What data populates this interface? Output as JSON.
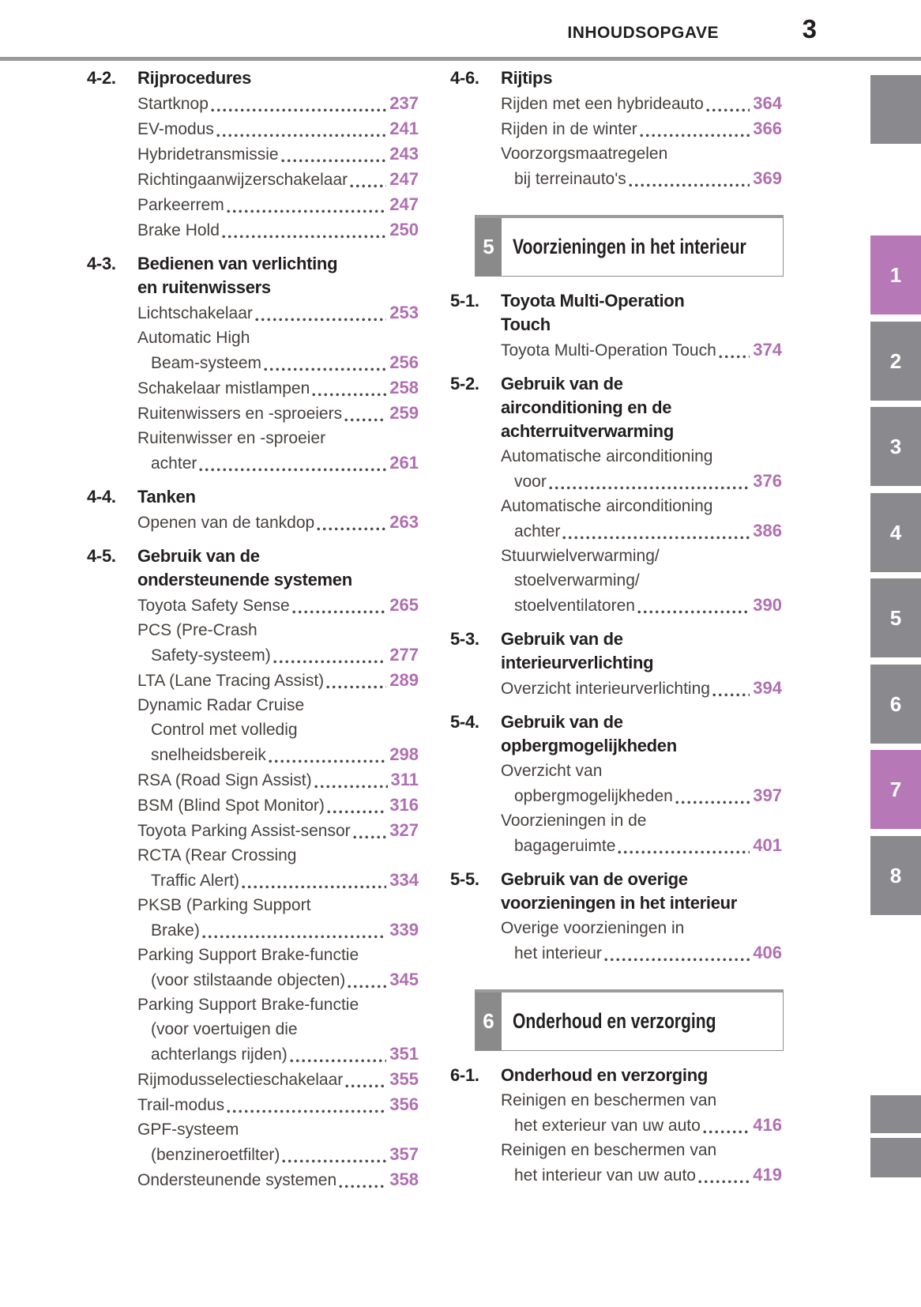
{
  "header": {
    "title": "INHOUDSOPGAVE",
    "page_number": "3"
  },
  "colors": {
    "page_number_purple": "#b06fb1",
    "tab_purple": "#b778b8",
    "tab_gray": "#8a8a8e",
    "chapter_block_gray": "#8a8a8a",
    "rule_gray": "#9b9b9b"
  },
  "columns": {
    "left": [
      {
        "type": "section",
        "number": "4-2.",
        "title_lines": [
          "Rijprocedures"
        ],
        "entries": [
          {
            "lines": [
              "Startknop"
            ],
            "page": "237"
          },
          {
            "lines": [
              "EV-modus"
            ],
            "page": "241"
          },
          {
            "lines": [
              "Hybridetransmissie"
            ],
            "page": "243"
          },
          {
            "lines": [
              "Richtingaanwijzerschakelaar"
            ],
            "page": "247"
          },
          {
            "lines": [
              "Parkeerrem"
            ],
            "page": "247"
          },
          {
            "lines": [
              "Brake Hold"
            ],
            "page": "250"
          }
        ]
      },
      {
        "type": "section",
        "number": "4-3.",
        "title_lines": [
          "Bedienen van verlichting",
          "en ruitenwissers"
        ],
        "entries": [
          {
            "lines": [
              "Lichtschakelaar"
            ],
            "page": "253"
          },
          {
            "lines": [
              "Automatic High",
              "Beam-systeem"
            ],
            "page": "256"
          },
          {
            "lines": [
              "Schakelaar mistlampen"
            ],
            "page": "258"
          },
          {
            "lines": [
              "Ruitenwissers en -sproeiers"
            ],
            "page": "259"
          },
          {
            "lines": [
              "Ruitenwisser en -sproeier",
              "achter"
            ],
            "page": "261"
          }
        ]
      },
      {
        "type": "section",
        "number": "4-4.",
        "title_lines": [
          "Tanken"
        ],
        "entries": [
          {
            "lines": [
              "Openen van de tankdop"
            ],
            "page": "263"
          }
        ]
      },
      {
        "type": "section",
        "number": "4-5.",
        "title_lines": [
          "Gebruik van de",
          "ondersteunende systemen"
        ],
        "entries": [
          {
            "lines": [
              "Toyota Safety Sense"
            ],
            "page": "265"
          },
          {
            "lines": [
              "PCS (Pre-Crash",
              "Safety-systeem)"
            ],
            "page": "277"
          },
          {
            "lines": [
              "LTA (Lane Tracing Assist)"
            ],
            "page": "289"
          },
          {
            "lines": [
              "Dynamic Radar Cruise",
              "Control met volledig",
              "snelheidsbereik"
            ],
            "page": "298"
          },
          {
            "lines": [
              "RSA (Road Sign Assist)"
            ],
            "page": "311"
          },
          {
            "lines": [
              "BSM (Blind Spot Monitor)"
            ],
            "page": "316"
          },
          {
            "lines": [
              "Toyota Parking Assist-sensor"
            ],
            "page": "327"
          },
          {
            "lines": [
              "RCTA (Rear Crossing",
              "Traffic Alert)"
            ],
            "page": "334"
          },
          {
            "lines": [
              "PKSB (Parking Support",
              "Brake)"
            ],
            "page": "339"
          },
          {
            "lines": [
              "Parking Support Brake-functie",
              "(voor stilstaande objecten)"
            ],
            "page": "345"
          },
          {
            "lines": [
              "Parking Support Brake-functie",
              "(voor voertuigen die",
              "achterlangs rijden)"
            ],
            "page": "351"
          },
          {
            "lines": [
              "Rijmodusselectieschakelaar"
            ],
            "page": "355"
          },
          {
            "lines": [
              "Trail-modus"
            ],
            "page": "356"
          },
          {
            "lines": [
              "GPF-systeem",
              "(benzineroetfilter)"
            ],
            "page": "357"
          },
          {
            "lines": [
              "Ondersteunende systemen"
            ],
            "page": "358"
          }
        ]
      }
    ],
    "right": [
      {
        "type": "section",
        "number": "4-6.",
        "title_lines": [
          "Rijtips"
        ],
        "entries": [
          {
            "lines": [
              "Rijden met een hybrideauto"
            ],
            "page": "364"
          },
          {
            "lines": [
              "Rijden in de winter"
            ],
            "page": "366"
          },
          {
            "lines": [
              "Voorzorgsmaatregelen",
              "bij terreinauto's"
            ],
            "page": "369"
          }
        ]
      },
      {
        "type": "chapter",
        "number": "5",
        "title": "Voorzieningen in het interieur"
      },
      {
        "type": "section",
        "number": "5-1.",
        "title_lines": [
          "Toyota Multi-Operation",
          "Touch"
        ],
        "entries": [
          {
            "lines": [
              "Toyota Multi-Operation Touch"
            ],
            "page": "374"
          }
        ]
      },
      {
        "type": "section",
        "number": "5-2.",
        "title_lines": [
          "Gebruik van de",
          "airconditioning en de",
          "achterruitverwarming"
        ],
        "entries": [
          {
            "lines": [
              "Automatische airconditioning",
              "voor"
            ],
            "page": "376"
          },
          {
            "lines": [
              "Automatische airconditioning",
              "achter"
            ],
            "page": "386"
          },
          {
            "lines": [
              "Stuurwielverwarming/",
              "stoelverwarming/",
              "stoelventilatoren"
            ],
            "page": "390"
          }
        ]
      },
      {
        "type": "section",
        "number": "5-3.",
        "title_lines": [
          "Gebruik van de",
          "interieurverlichting"
        ],
        "entries": [
          {
            "lines": [
              "Overzicht interieurverlichting"
            ],
            "page": "394"
          }
        ]
      },
      {
        "type": "section",
        "number": "5-4.",
        "title_lines": [
          "Gebruik van de",
          "opbergmogelijkheden"
        ],
        "entries": [
          {
            "lines": [
              "Overzicht van",
              "opbergmogelijkheden"
            ],
            "page": "397"
          },
          {
            "lines": [
              "Voorzieningen in de",
              "bagageruimte"
            ],
            "page": "401"
          }
        ]
      },
      {
        "type": "section",
        "number": "5-5.",
        "title_lines": [
          "Gebruik van de overige",
          "voorzieningen in het interieur"
        ],
        "entries": [
          {
            "lines": [
              "Overige voorzieningen in",
              "het interieur"
            ],
            "page": "406"
          }
        ]
      },
      {
        "type": "chapter",
        "number": "6",
        "title": "Onderhoud en verzorging"
      },
      {
        "type": "section",
        "number": "6-1.",
        "title_lines": [
          "Onderhoud en verzorging"
        ],
        "entries": [
          {
            "lines": [
              "Reinigen en beschermen van",
              "het exterieur van uw auto"
            ],
            "page": "416"
          },
          {
            "lines": [
              "Reinigen en beschermen van",
              "het interieur van uw auto"
            ],
            "page": "419"
          }
        ]
      }
    ]
  },
  "side_tabs": {
    "top_boxes": [
      ""
    ],
    "numbered": [
      {
        "label": "1",
        "accent": true
      },
      {
        "label": "2",
        "accent": false
      },
      {
        "label": "3",
        "accent": false
      },
      {
        "label": "4",
        "accent": false
      },
      {
        "label": "5",
        "accent": false
      },
      {
        "label": "6",
        "accent": false
      },
      {
        "label": "7",
        "accent": true
      },
      {
        "label": "8",
        "accent": false
      }
    ],
    "bottom_boxes": [
      "",
      ""
    ]
  }
}
